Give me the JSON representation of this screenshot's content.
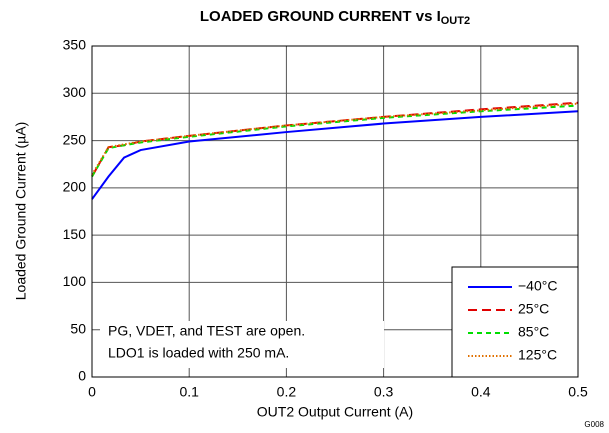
{
  "chart_data": {
    "type": "line",
    "title": "LOADED GROUND CURRENT vs I",
    "title_subscript": "OUT2",
    "x_label": "OUT2 Output Current (A)",
    "y_label": "Loaded Ground Current (µA)",
    "annotation": [
      "PG, VDET, and TEST are open.",
      "LDO1 is loaded with 250 mA."
    ],
    "figure_id": "G008",
    "x": [
      0,
      0.017,
      0.033,
      0.05,
      0.1,
      0.2,
      0.3,
      0.4,
      0.5
    ],
    "series": [
      {
        "name": "−40°C",
        "color": "#0000ff",
        "style": "solid",
        "values": [
          188,
          212,
          232,
          240,
          249,
          259,
          268,
          275,
          281
        ]
      },
      {
        "name": "25°C",
        "color": "#e00000",
        "style": "dashed",
        "values": [
          212,
          243,
          245,
          249,
          255,
          266,
          275,
          283,
          290
        ]
      },
      {
        "name": "85°C",
        "color": "#00dd00",
        "style": "short-dashed",
        "values": [
          212,
          242,
          245,
          248,
          254,
          265,
          274,
          281,
          287
        ]
      },
      {
        "name": "125°C",
        "color": "#e07000",
        "style": "dotted",
        "values": [
          214,
          243,
          246,
          249,
          255,
          266,
          275,
          282,
          289
        ]
      }
    ],
    "xlim": [
      0,
      0.5
    ],
    "xticks": [
      0,
      0.1,
      0.2,
      0.3,
      0.4,
      0.5
    ],
    "ylim": [
      0,
      350
    ],
    "yticks": [
      0,
      50,
      100,
      150,
      200,
      250,
      300,
      350
    ],
    "grid": true,
    "legend": "lower right"
  }
}
